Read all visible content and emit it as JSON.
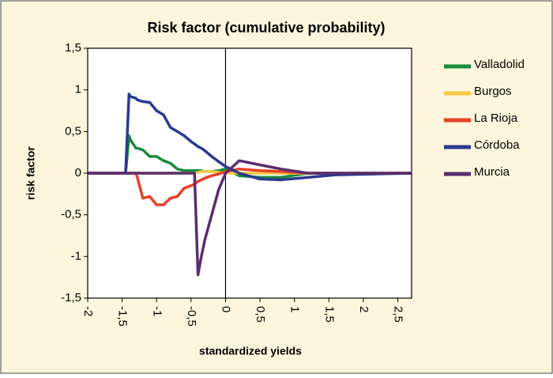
{
  "chart_data": {
    "type": "line",
    "title": "Risk factor (cumulative probability)",
    "x_label": "standardized yields",
    "y_label": "risk factor",
    "x": [
      -2,
      -1.45,
      -1.4,
      -1.38,
      -1.3,
      -1.28,
      -1.2,
      -1.1,
      -1,
      -0.9,
      -0.8,
      -0.7,
      -0.6,
      -0.5,
      -0.45,
      -0.4,
      -0.35,
      -0.3,
      -0.2,
      -0.1,
      0,
      0.2,
      0.5,
      0.8,
      1.2,
      1.6,
      2.7
    ],
    "series": [
      {
        "name": "Valladolid",
        "color": "#1a8a3c",
        "values": [
          0,
          0,
          0.45,
          0.4,
          0.3,
          0.3,
          0.28,
          0.2,
          0.2,
          0.15,
          0.12,
          0.05,
          0.03,
          0.03,
          0.03,
          0.03,
          0.03,
          0.02,
          0.02,
          0.03,
          0.05,
          -0.03,
          -0.05,
          -0.05,
          0,
          0,
          0
        ]
      },
      {
        "name": "Burgos",
        "color": "#f5c842",
        "values": [
          0,
          0,
          0,
          0,
          0,
          0,
          0,
          0,
          0,
          0,
          0,
          0,
          0,
          0,
          0,
          0.01,
          0.02,
          0.02,
          0.02,
          0.01,
          0,
          0,
          0,
          0,
          0,
          0,
          0
        ]
      },
      {
        "name": "La Rioja",
        "color": "#e8402a",
        "values": [
          0,
          0,
          0,
          0,
          0,
          -0.05,
          -0.3,
          -0.28,
          -0.38,
          -0.38,
          -0.3,
          -0.28,
          -0.18,
          -0.15,
          -0.13,
          -0.1,
          -0.08,
          -0.06,
          -0.03,
          -0.01,
          0.02,
          0.05,
          0.03,
          0.02,
          0,
          0,
          0
        ]
      },
      {
        "name": "Córdoba",
        "color": "#2b3a8f",
        "values": [
          0,
          0,
          0.95,
          0.92,
          0.9,
          0.88,
          0.86,
          0.85,
          0.75,
          0.7,
          0.55,
          0.5,
          0.45,
          0.38,
          0.35,
          0.32,
          0.3,
          0.27,
          0.2,
          0.14,
          0.08,
          0,
          -0.07,
          -0.08,
          -0.05,
          -0.02,
          0
        ]
      },
      {
        "name": "Murcia",
        "color": "#5a2d6e",
        "values": [
          0,
          0,
          0,
          0,
          0,
          0,
          0,
          0,
          0,
          0,
          0,
          0,
          0,
          0,
          0,
          -1.22,
          -1.0,
          -0.8,
          -0.5,
          -0.2,
          0,
          0.15,
          0.1,
          0.05,
          0,
          0,
          0
        ]
      }
    ],
    "xlim": [
      -2,
      2.7
    ],
    "ylim": [
      -1.5,
      1.5
    ],
    "xticks": [
      -2,
      {
        "value": -1.5,
        "label": "-1,5"
      },
      -1,
      {
        "value": -0.5,
        "label": "-0,5"
      },
      0,
      {
        "value": 0.5,
        "label": "0,5"
      },
      1,
      {
        "value": 1.5,
        "label": "1,5"
      },
      2,
      {
        "value": 2.5,
        "label": "2,5"
      }
    ],
    "yticks": [
      {
        "value": -1.5,
        "label": "-1,5"
      },
      -1,
      {
        "value": -0.5,
        "label": "-0,5"
      },
      0,
      {
        "value": 0.5,
        "label": "0,5"
      },
      1,
      {
        "value": 1.5,
        "label": "1,5"
      }
    ],
    "legend": "right"
  }
}
